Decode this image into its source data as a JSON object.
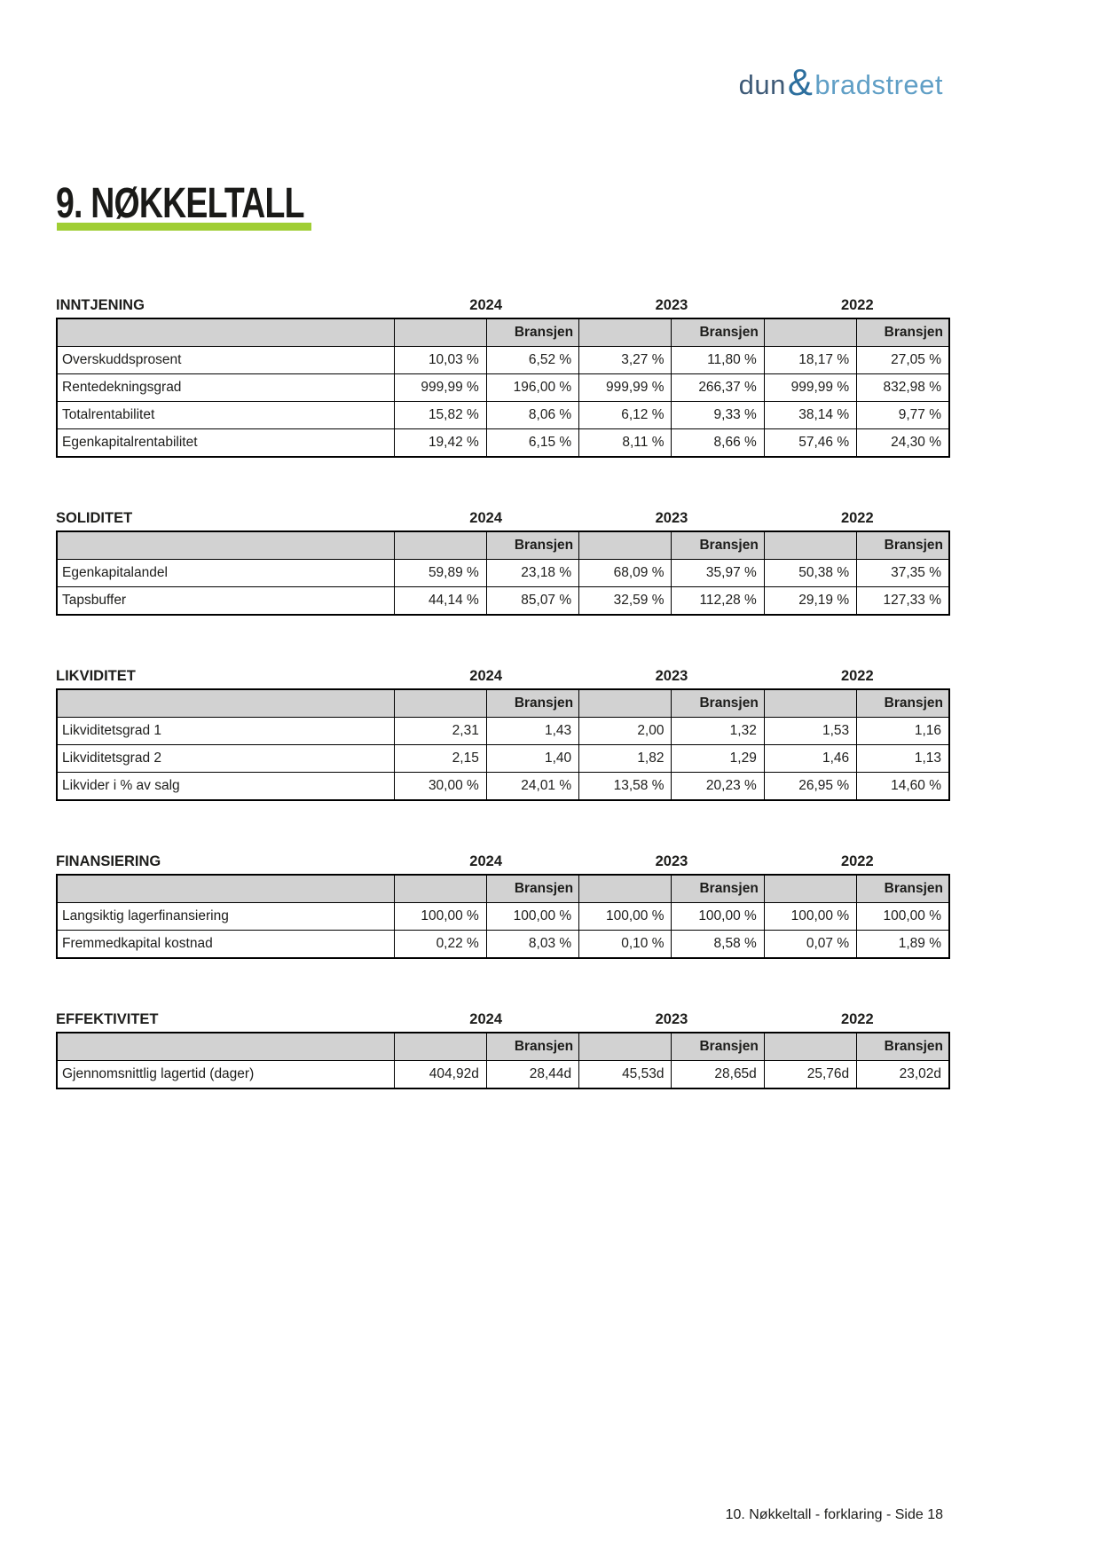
{
  "logo": {
    "part1": "dun",
    "ampersand": "&",
    "part2": "bradstreet"
  },
  "title": "9. NØKKELTALL",
  "years": [
    "2024",
    "2023",
    "2022"
  ],
  "labels": {
    "bransjen": "Bransjen"
  },
  "sections": [
    {
      "title": "INNTJENING",
      "rows": [
        {
          "label": "Overskuddsprosent",
          "values": [
            "10,03 %",
            "6,52 %",
            "3,27 %",
            "11,80 %",
            "18,17 %",
            "27,05 %"
          ]
        },
        {
          "label": "Rentedekningsgrad",
          "values": [
            "999,99 %",
            "196,00 %",
            "999,99 %",
            "266,37 %",
            "999,99 %",
            "832,98 %"
          ]
        },
        {
          "label": "Totalrentabilitet",
          "values": [
            "15,82 %",
            "8,06 %",
            "6,12 %",
            "9,33 %",
            "38,14 %",
            "9,77 %"
          ]
        },
        {
          "label": "Egenkapitalrentabilitet",
          "values": [
            "19,42 %",
            "6,15 %",
            "8,11 %",
            "8,66 %",
            "57,46 %",
            "24,30 %"
          ]
        }
      ]
    },
    {
      "title": "SOLIDITET",
      "rows": [
        {
          "label": "Egenkapitalandel",
          "values": [
            "59,89 %",
            "23,18 %",
            "68,09 %",
            "35,97 %",
            "50,38 %",
            "37,35 %"
          ]
        },
        {
          "label": "Tapsbuffer",
          "values": [
            "44,14 %",
            "85,07 %",
            "32,59 %",
            "112,28 %",
            "29,19 %",
            "127,33 %"
          ]
        }
      ]
    },
    {
      "title": "LIKVIDITET",
      "rows": [
        {
          "label": "Likviditetsgrad 1",
          "values": [
            "2,31",
            "1,43",
            "2,00",
            "1,32",
            "1,53",
            "1,16"
          ]
        },
        {
          "label": "Likviditetsgrad 2",
          "values": [
            "2,15",
            "1,40",
            "1,82",
            "1,29",
            "1,46",
            "1,13"
          ]
        },
        {
          "label": "Likvider i % av salg",
          "values": [
            "30,00 %",
            "24,01 %",
            "13,58 %",
            "20,23 %",
            "26,95 %",
            "14,60 %"
          ]
        }
      ]
    },
    {
      "title": "FINANSIERING",
      "rows": [
        {
          "label": "Langsiktig lagerfinansiering",
          "values": [
            "100,00 %",
            "100,00 %",
            "100,00 %",
            "100,00 %",
            "100,00 %",
            "100,00 %"
          ]
        },
        {
          "label": "Fremmedkapital kostnad",
          "values": [
            "0,22 %",
            "8,03 %",
            "0,10 %",
            "8,58 %",
            "0,07 %",
            "1,89 %"
          ]
        }
      ]
    },
    {
      "title": "EFFEKTIVITET",
      "rows": [
        {
          "label": "Gjennomsnittlig lagertid (dager)",
          "values": [
            "404,92d",
            "28,44d",
            "45,53d",
            "28,65d",
            "25,76d",
            "23,02d"
          ]
        }
      ]
    }
  ],
  "footer": {
    "text": "10. Nøkkeltall - forklaring - Side 18"
  },
  "colors": {
    "accent_green": "#a0ce34",
    "logo_dun": "#3e5a77",
    "logo_ampersand": "#2d6f9e",
    "logo_bradstreet": "#609fc6",
    "table_header_bg": "#d2d2d2",
    "border": "#000000",
    "text": "#1d1d1b"
  }
}
